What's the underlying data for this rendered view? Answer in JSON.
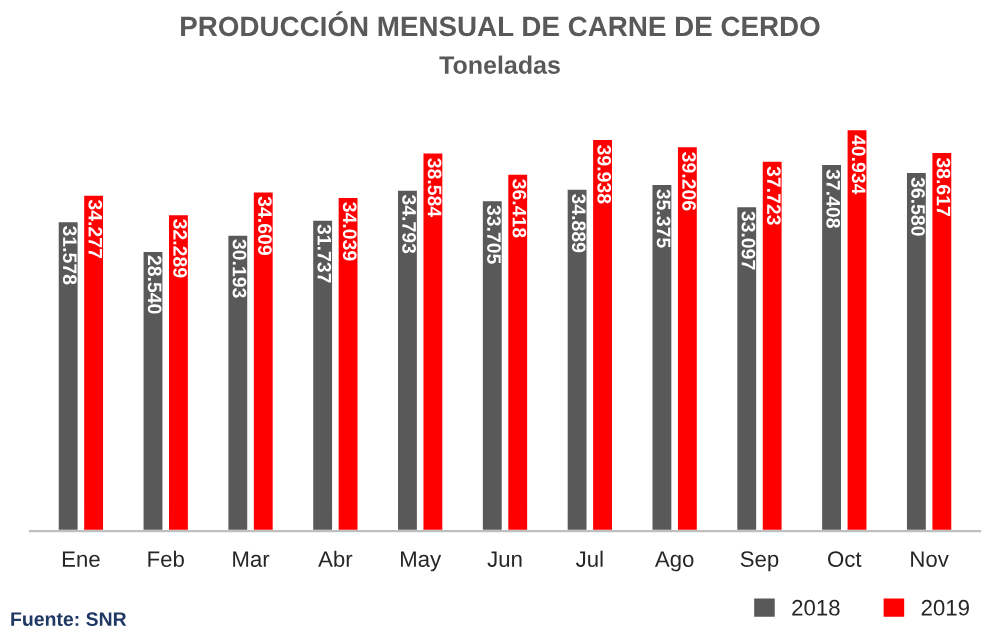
{
  "chart_data": {
    "type": "bar",
    "title": "PRODUCCIÓN MENSUAL DE CARNE DE CERDO",
    "subtitle": "Toneladas",
    "categories": [
      "Ene",
      "Feb",
      "Mar",
      "Abr",
      "May",
      "Jun",
      "Jul",
      "Ago",
      "Sep",
      "Oct",
      "Nov"
    ],
    "series": [
      {
        "name": "2018",
        "color": "#595959",
        "values": [
          31578,
          28540,
          30193,
          31737,
          34793,
          33705,
          34889,
          35375,
          33097,
          37408,
          36580
        ],
        "value_labels": [
          "31.578",
          "28.540",
          "30.193",
          "31.737",
          "34.793",
          "33.705",
          "34.889",
          "35.375",
          "33.097",
          "37.408",
          "36.580"
        ]
      },
      {
        "name": "2019",
        "color": "#ff0000",
        "values": [
          34277,
          32289,
          34609,
          34039,
          38584,
          36418,
          39938,
          39206,
          37723,
          40934,
          38617
        ],
        "value_labels": [
          "34.277",
          "32.289",
          "34.609",
          "34.039",
          "38.584",
          "36.418",
          "39.938",
          "39.206",
          "37.723",
          "40.934",
          "38.617"
        ]
      }
    ],
    "tick_labels": "x",
    "grid": false,
    "legend": "bottom right",
    "annotations": [
      "Fuente: SNR"
    ]
  }
}
